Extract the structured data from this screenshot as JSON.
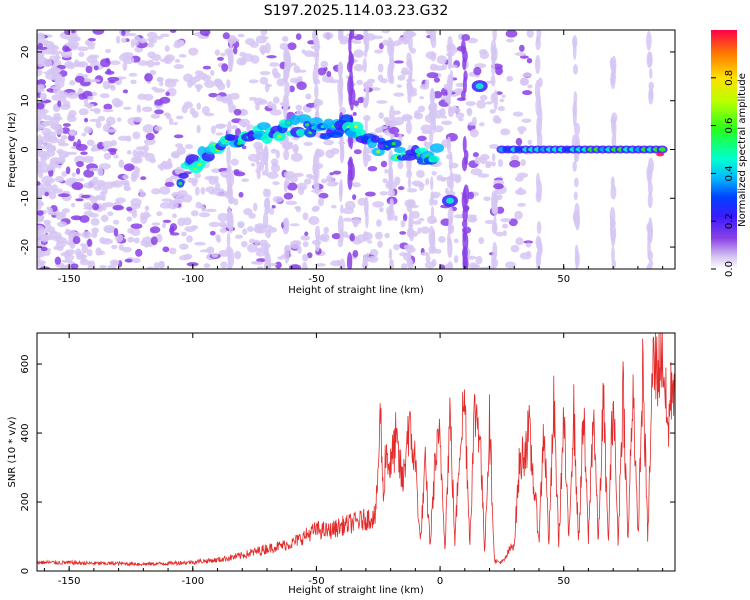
{
  "chart_data": [
    {
      "type": "heatmap",
      "title": "S197.2025.114.03.23.G32",
      "xlabel": "Height of straight line (km)",
      "ylabel": "Frequency (Hz)",
      "xlim": [
        -163,
        95
      ],
      "ylim": [
        -24.5,
        24.5
      ],
      "xticks": [
        -150,
        -100,
        -50,
        0,
        50
      ],
      "yticks": [
        -20,
        -10,
        0,
        10,
        20
      ],
      "colorbar": {
        "label": "Normalized spectral amplitude",
        "lim": [
          0,
          1
        ],
        "ticks": [
          "0.0",
          "0.2",
          "0.4",
          "0.6",
          "0.8"
        ]
      },
      "features": [
        {
          "name": "main track",
          "x": [
            -105,
            -95,
            -85,
            -75,
            -65,
            -55,
            -45,
            -38,
            -30,
            -20,
            -10,
            0
          ],
          "y": [
            -6,
            -1,
            1,
            3,
            4,
            5,
            4,
            5,
            2,
            0,
            -1,
            -1
          ]
        },
        {
          "name": "flat track",
          "x": [
            25,
            92
          ],
          "y": [
            0,
            0
          ]
        },
        {
          "name": "spot",
          "x": 4,
          "y": -10.5
        },
        {
          "name": "spot",
          "x": 16,
          "y": 13
        }
      ]
    },
    {
      "type": "line",
      "xlabel": "Height of straight line (km)",
      "ylabel": "SNR (10 * v/v)",
      "xlim": [
        -163,
        95
      ],
      "ylim": [
        0,
        690
      ],
      "xticks": [
        -150,
        -100,
        -50,
        0,
        50
      ],
      "yticks": [
        0,
        200,
        400,
        600
      ],
      "color": "#e32b2b",
      "series": [
        {
          "x": [
            -163,
            -150,
            -140,
            -130,
            -120,
            -110,
            -100,
            -90,
            -80,
            -70,
            -60,
            -55,
            -50,
            -45,
            -40,
            -35,
            -30,
            -26,
            -24,
            -23,
            -22,
            -20,
            -18,
            -15,
            -13,
            -10,
            -8,
            -6,
            -4,
            -2,
            0,
            2,
            4,
            6,
            8,
            10,
            12,
            14,
            16,
            18,
            20,
            22,
            24,
            26,
            28,
            30,
            32,
            34,
            36,
            40,
            42,
            44,
            46,
            48,
            50,
            52,
            54,
            56,
            58,
            60,
            62,
            64,
            66,
            68,
            70,
            72,
            74,
            76,
            78,
            80,
            82,
            84,
            86,
            88,
            90,
            92,
            94
          ],
          "y": [
            25,
            24,
            22,
            22,
            20,
            22,
            26,
            32,
            45,
            65,
            80,
            100,
            120,
            115,
            130,
            140,
            150,
            160,
            460,
            200,
            350,
            300,
            380,
            250,
            420,
            320,
            80,
            300,
            75,
            320,
            380,
            70,
            460,
            80,
            380,
            500,
            80,
            470,
            420,
            60,
            430,
            30,
            25,
            30,
            60,
            80,
            300,
            350,
            400,
            90,
            430,
            80,
            480,
            80,
            440,
            90,
            470,
            80,
            450,
            90,
            480,
            80,
            500,
            80,
            520,
            80,
            540,
            80,
            560,
            85,
            580,
            90,
            600,
            590,
            650,
            400,
            560
          ]
        }
      ]
    }
  ]
}
